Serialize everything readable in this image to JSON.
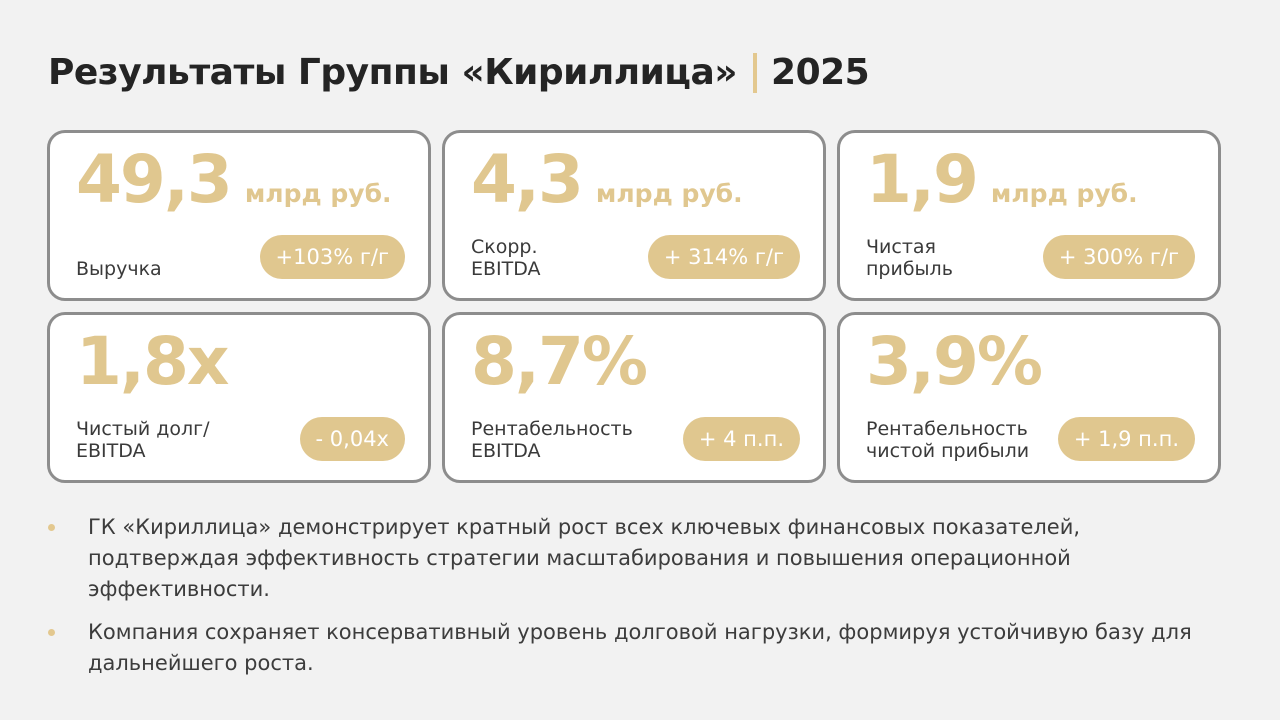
{
  "slide": {
    "title": "Результаты Группы «Кириллица»",
    "year": "2025",
    "accent_color": "#e0c78f"
  },
  "cards": [
    {
      "value": "49,3",
      "unit": "млрд руб.",
      "label": "Выручка",
      "badge": "+103% г/г"
    },
    {
      "value": "4,3",
      "unit": "млрд руб.",
      "label": "Скорр.\nEBITDA",
      "badge": "+ 314% г/г"
    },
    {
      "value": "1,9",
      "unit": "млрд руб.",
      "label": "Чистая\nприбыль",
      "badge": "+ 300% г/г"
    },
    {
      "value": "1,8x",
      "unit": "",
      "label": "Чистый долг/\nEBITDA",
      "badge": "- 0,04x"
    },
    {
      "value": "8,7%",
      "unit": "",
      "label": "Рентабельность\nEBITDA",
      "badge": "+ 4 п.п."
    },
    {
      "value": "3,9%",
      "unit": "",
      "label": "Рентабельность\nчистой прибыли",
      "badge": "+ 1,9 п.п."
    }
  ],
  "bullets": [
    "ГК «Кириллица» демонстрирует кратный рост всех ключевых финансовых показателей, подтверждая эффективность стратегии масштабирования и повышения операционной эффективности.",
    "Компания сохраняет консервативный уровень долговой нагрузки, формируя устойчивую базу для дальнейшего роста."
  ]
}
